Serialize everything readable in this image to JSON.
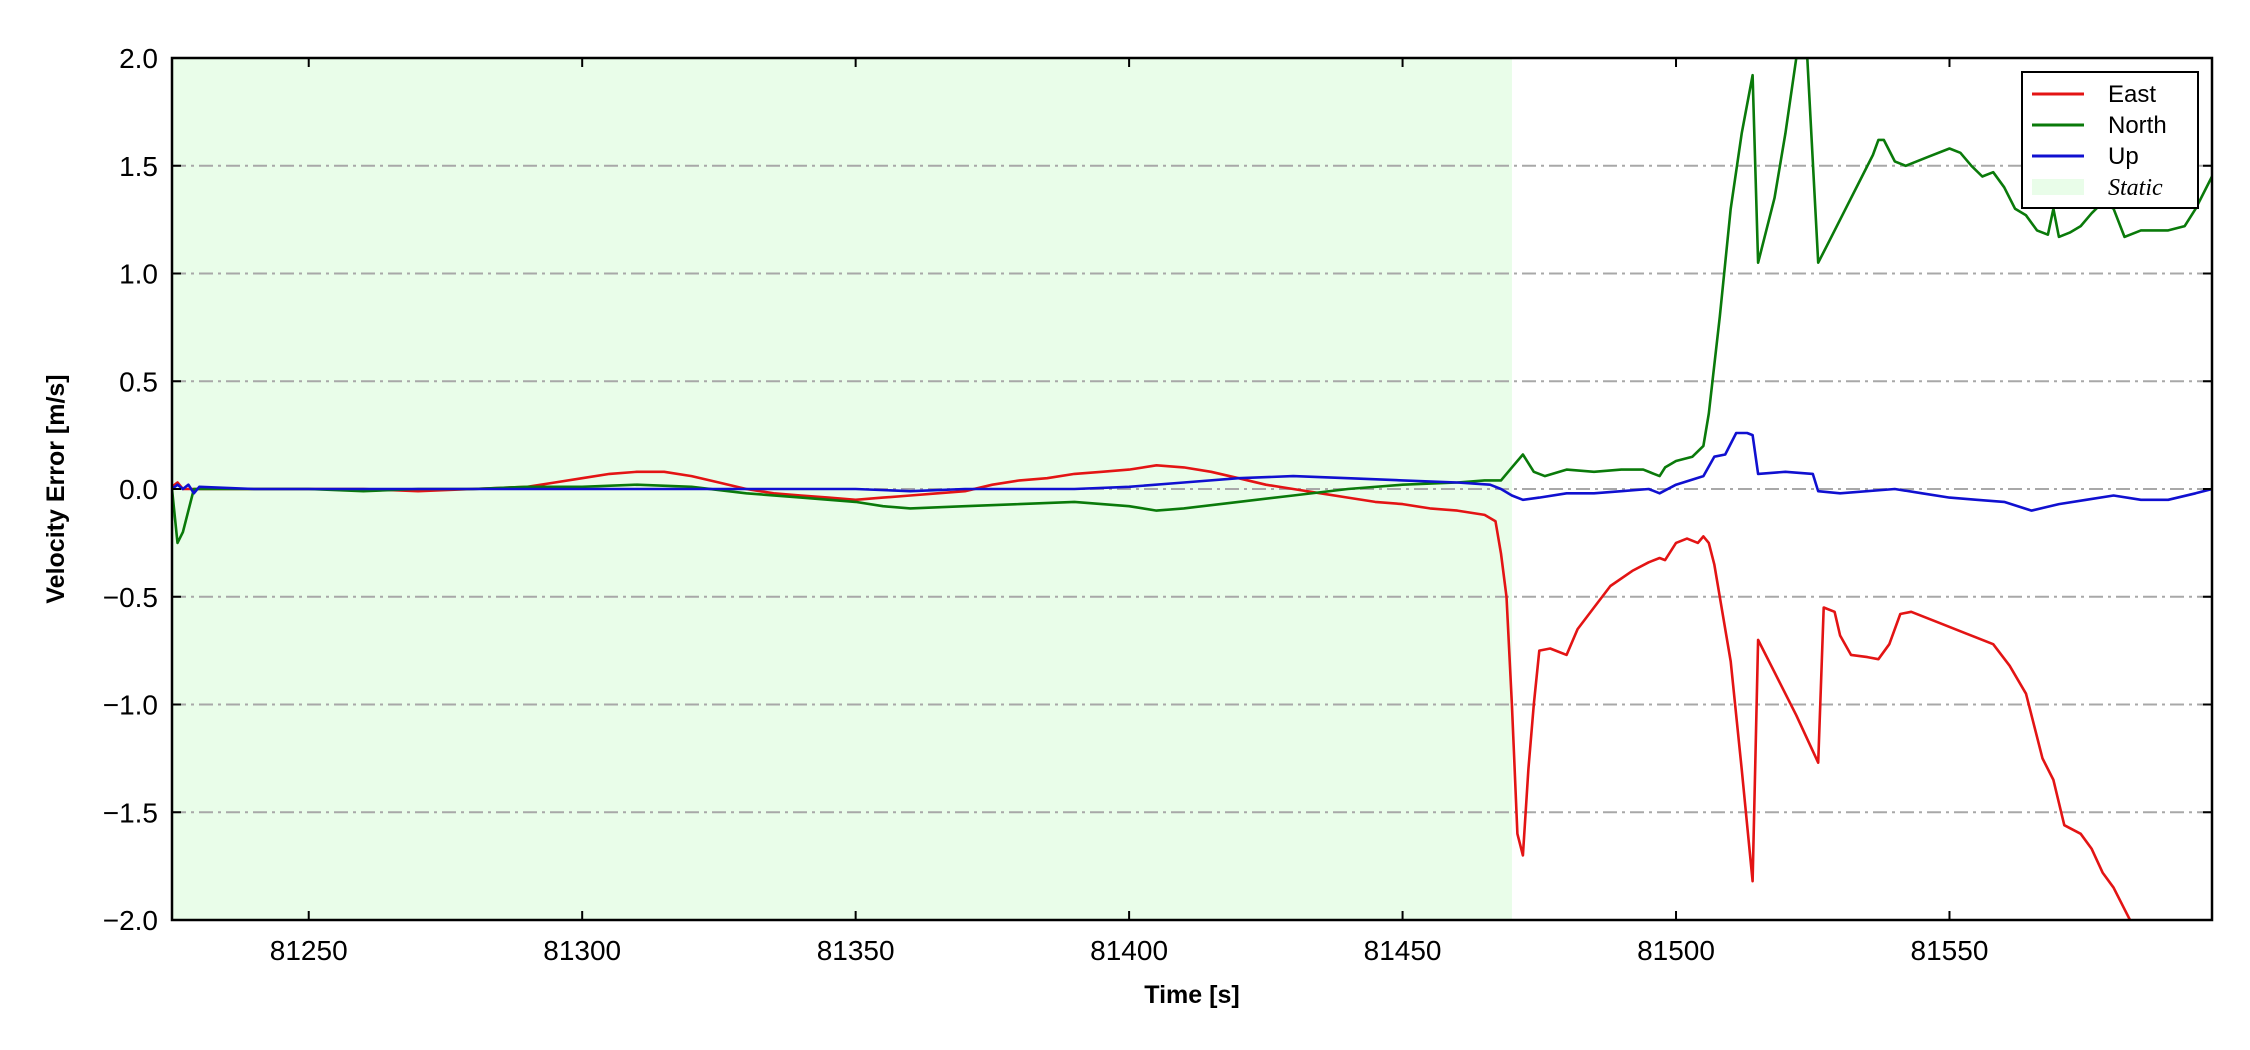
{
  "chart_data": {
    "type": "line",
    "title": "",
    "xlabel": "Time [s]",
    "ylabel": "Velocity Error [m/s]",
    "xlim": [
      81225,
      81598
    ],
    "ylim": [
      -2.0,
      2.0
    ],
    "x_ticks": [
      81250,
      81300,
      81350,
      81400,
      81450,
      81500,
      81550
    ],
    "x_tick_labels": [
      "81250",
      "81300",
      "81350",
      "81400",
      "81450",
      "81500",
      "81550"
    ],
    "y_ticks": [
      2.0,
      1.5,
      1.0,
      0.5,
      0.0,
      -0.5,
      -1.0,
      -1.5,
      -2.0
    ],
    "y_tick_labels": [
      "2.0",
      "1.5",
      "1.0",
      "0.5",
      "0.0",
      "−0.5",
      "−1.0",
      "−1.5",
      "−2.0"
    ],
    "grid": {
      "y": true,
      "x": false,
      "style": "dash-dot",
      "color": "#a8a8a8"
    },
    "legend": {
      "placement": "top-right"
    },
    "shaded_regions": [
      {
        "name": "Static",
        "x_start": 81225,
        "x_end": 81470,
        "color": "#e9fde9"
      }
    ],
    "series": [
      {
        "name": "East",
        "color": "#e31414",
        "points": [
          [
            81225,
            0.01
          ],
          [
            81226,
            0.03
          ],
          [
            81227,
            0.0
          ],
          [
            81230,
            0.0
          ],
          [
            81240,
            0.0
          ],
          [
            81250,
            0.0
          ],
          [
            81260,
            0.0
          ],
          [
            81270,
            -0.01
          ],
          [
            81280,
            0.0
          ],
          [
            81290,
            0.01
          ],
          [
            81295,
            0.03
          ],
          [
            81300,
            0.05
          ],
          [
            81305,
            0.07
          ],
          [
            81310,
            0.08
          ],
          [
            81315,
            0.08
          ],
          [
            81320,
            0.06
          ],
          [
            81325,
            0.03
          ],
          [
            81330,
            0.0
          ],
          [
            81335,
            -0.02
          ],
          [
            81340,
            -0.03
          ],
          [
            81345,
            -0.04
          ],
          [
            81350,
            -0.05
          ],
          [
            81355,
            -0.04
          ],
          [
            81360,
            -0.03
          ],
          [
            81365,
            -0.02
          ],
          [
            81370,
            -0.01
          ],
          [
            81375,
            0.02
          ],
          [
            81380,
            0.04
          ],
          [
            81385,
            0.05
          ],
          [
            81390,
            0.07
          ],
          [
            81395,
            0.08
          ],
          [
            81400,
            0.09
          ],
          [
            81405,
            0.11
          ],
          [
            81410,
            0.1
          ],
          [
            81415,
            0.08
          ],
          [
            81420,
            0.05
          ],
          [
            81425,
            0.02
          ],
          [
            81430,
            0.0
          ],
          [
            81435,
            -0.02
          ],
          [
            81440,
            -0.04
          ],
          [
            81445,
            -0.06
          ],
          [
            81450,
            -0.07
          ],
          [
            81455,
            -0.09
          ],
          [
            81460,
            -0.1
          ],
          [
            81465,
            -0.12
          ],
          [
            81467,
            -0.15
          ],
          [
            81468,
            -0.3
          ],
          [
            81469,
            -0.5
          ],
          [
            81470,
            -1.0
          ],
          [
            81471,
            -1.6
          ],
          [
            81472,
            -1.7
          ],
          [
            81473,
            -1.3
          ],
          [
            81474,
            -1.0
          ],
          [
            81475,
            -0.75
          ],
          [
            81477,
            -0.74
          ],
          [
            81480,
            -0.77
          ],
          [
            81482,
            -0.65
          ],
          [
            81485,
            -0.55
          ],
          [
            81488,
            -0.45
          ],
          [
            81492,
            -0.38
          ],
          [
            81495,
            -0.34
          ],
          [
            81497,
            -0.32
          ],
          [
            81498,
            -0.33
          ],
          [
            81500,
            -0.25
          ],
          [
            81502,
            -0.23
          ],
          [
            81504,
            -0.25
          ],
          [
            81505,
            -0.22
          ],
          [
            81506,
            -0.25
          ],
          [
            81507,
            -0.35
          ],
          [
            81510,
            -0.8
          ],
          [
            81512,
            -1.3
          ],
          [
            81514,
            -1.82
          ],
          [
            81515,
            -0.7
          ],
          [
            81518,
            -0.85
          ],
          [
            81522,
            -1.05
          ],
          [
            81526,
            -1.27
          ],
          [
            81527,
            -0.55
          ],
          [
            81529,
            -0.57
          ],
          [
            81530,
            -0.68
          ],
          [
            81532,
            -0.77
          ],
          [
            81535,
            -0.78
          ],
          [
            81537,
            -0.79
          ],
          [
            81539,
            -0.72
          ],
          [
            81541,
            -0.58
          ],
          [
            81543,
            -0.57
          ],
          [
            81548,
            -0.62
          ],
          [
            81553,
            -0.67
          ],
          [
            81558,
            -0.72
          ],
          [
            81561,
            -0.82
          ],
          [
            81564,
            -0.95
          ],
          [
            81566,
            -1.15
          ],
          [
            81567,
            -1.25
          ],
          [
            81569,
            -1.35
          ],
          [
            81571,
            -1.56
          ],
          [
            81574,
            -1.6
          ],
          [
            81576,
            -1.67
          ],
          [
            81578,
            -1.78
          ],
          [
            81580,
            -1.85
          ],
          [
            81582,
            -1.95
          ],
          [
            81583,
            -2.0
          ]
        ]
      },
      {
        "name": "North",
        "color": "#0a7a0a",
        "points": [
          [
            81225,
            0.0
          ],
          [
            81226,
            -0.25
          ],
          [
            81227,
            -0.2
          ],
          [
            81228,
            -0.1
          ],
          [
            81229,
            0.0
          ],
          [
            81230,
            0.0
          ],
          [
            81240,
            0.0
          ],
          [
            81250,
            0.0
          ],
          [
            81260,
            -0.01
          ],
          [
            81270,
            0.0
          ],
          [
            81280,
            0.0
          ],
          [
            81290,
            0.01
          ],
          [
            81300,
            0.01
          ],
          [
            81310,
            0.02
          ],
          [
            81320,
            0.01
          ],
          [
            81330,
            -0.02
          ],
          [
            81340,
            -0.04
          ],
          [
            81350,
            -0.06
          ],
          [
            81355,
            -0.08
          ],
          [
            81360,
            -0.09
          ],
          [
            81370,
            -0.08
          ],
          [
            81380,
            -0.07
          ],
          [
            81390,
            -0.06
          ],
          [
            81400,
            -0.08
          ],
          [
            81405,
            -0.1
          ],
          [
            81410,
            -0.09
          ],
          [
            81420,
            -0.06
          ],
          [
            81430,
            -0.03
          ],
          [
            81440,
            0.0
          ],
          [
            81450,
            0.02
          ],
          [
            81460,
            0.03
          ],
          [
            81465,
            0.04
          ],
          [
            81468,
            0.04
          ],
          [
            81470,
            0.1
          ],
          [
            81472,
            0.16
          ],
          [
            81474,
            0.08
          ],
          [
            81476,
            0.06
          ],
          [
            81480,
            0.09
          ],
          [
            81485,
            0.08
          ],
          [
            81490,
            0.09
          ],
          [
            81494,
            0.09
          ],
          [
            81496,
            0.07
          ],
          [
            81497,
            0.06
          ],
          [
            81498,
            0.1
          ],
          [
            81500,
            0.13
          ],
          [
            81503,
            0.15
          ],
          [
            81505,
            0.2
          ],
          [
            81506,
            0.35
          ],
          [
            81508,
            0.8
          ],
          [
            81510,
            1.3
          ],
          [
            81512,
            1.65
          ],
          [
            81514,
            1.92
          ],
          [
            81515,
            1.05
          ],
          [
            81518,
            1.35
          ],
          [
            81520,
            1.65
          ],
          [
            81522,
            2.0
          ],
          [
            81524,
            2.0
          ],
          [
            81526,
            1.05
          ],
          [
            81528,
            1.15
          ],
          [
            81531,
            1.3
          ],
          [
            81534,
            1.45
          ],
          [
            81536,
            1.55
          ],
          [
            81537,
            1.62
          ],
          [
            81538,
            1.62
          ],
          [
            81540,
            1.52
          ],
          [
            81542,
            1.5
          ],
          [
            81546,
            1.54
          ],
          [
            81550,
            1.58
          ],
          [
            81552,
            1.56
          ],
          [
            81554,
            1.5
          ],
          [
            81556,
            1.45
          ],
          [
            81558,
            1.47
          ],
          [
            81560,
            1.4
          ],
          [
            81562,
            1.3
          ],
          [
            81564,
            1.27
          ],
          [
            81566,
            1.2
          ],
          [
            81568,
            1.18
          ],
          [
            81569,
            1.3
          ],
          [
            81570,
            1.17
          ],
          [
            81572,
            1.19
          ],
          [
            81574,
            1.22
          ],
          [
            81576,
            1.28
          ],
          [
            81578,
            1.33
          ],
          [
            81580,
            1.3
          ],
          [
            81582,
            1.17
          ],
          [
            81585,
            1.2
          ],
          [
            81590,
            1.2
          ],
          [
            81593,
            1.22
          ],
          [
            81595,
            1.3
          ],
          [
            81598,
            1.45
          ]
        ]
      },
      {
        "name": "Up",
        "color": "#1010d0",
        "points": [
          [
            81225,
            0.0
          ],
          [
            81226,
            0.02
          ],
          [
            81227,
            0.0
          ],
          [
            81228,
            0.02
          ],
          [
            81229,
            -0.02
          ],
          [
            81230,
            0.01
          ],
          [
            81240,
            0.0
          ],
          [
            81250,
            0.0
          ],
          [
            81260,
            0.0
          ],
          [
            81270,
            0.0
          ],
          [
            81280,
            0.0
          ],
          [
            81290,
            0.0
          ],
          [
            81300,
            0.0
          ],
          [
            81310,
            0.0
          ],
          [
            81320,
            0.0
          ],
          [
            81330,
            0.0
          ],
          [
            81340,
            0.0
          ],
          [
            81350,
            0.0
          ],
          [
            81360,
            -0.01
          ],
          [
            81370,
            0.0
          ],
          [
            81380,
            0.0
          ],
          [
            81390,
            0.0
          ],
          [
            81400,
            0.01
          ],
          [
            81410,
            0.03
          ],
          [
            81420,
            0.05
          ],
          [
            81430,
            0.06
          ],
          [
            81440,
            0.05
          ],
          [
            81450,
            0.04
          ],
          [
            81460,
            0.03
          ],
          [
            81466,
            0.02
          ],
          [
            81468,
            0.0
          ],
          [
            81470,
            -0.03
          ],
          [
            81472,
            -0.05
          ],
          [
            81475,
            -0.04
          ],
          [
            81480,
            -0.02
          ],
          [
            81485,
            -0.02
          ],
          [
            81490,
            -0.01
          ],
          [
            81495,
            0.0
          ],
          [
            81497,
            -0.02
          ],
          [
            81500,
            0.02
          ],
          [
            81505,
            0.06
          ],
          [
            81507,
            0.15
          ],
          [
            81509,
            0.16
          ],
          [
            81511,
            0.26
          ],
          [
            81513,
            0.26
          ],
          [
            81514,
            0.25
          ],
          [
            81515,
            0.07
          ],
          [
            81520,
            0.08
          ],
          [
            81525,
            0.07
          ],
          [
            81526,
            -0.01
          ],
          [
            81530,
            -0.02
          ],
          [
            81540,
            0.0
          ],
          [
            81545,
            -0.02
          ],
          [
            81550,
            -0.04
          ],
          [
            81555,
            -0.05
          ],
          [
            81560,
            -0.06
          ],
          [
            81565,
            -0.1
          ],
          [
            81570,
            -0.07
          ],
          [
            81575,
            -0.05
          ],
          [
            81580,
            -0.03
          ],
          [
            81585,
            -0.05
          ],
          [
            81590,
            -0.05
          ],
          [
            81595,
            -0.02
          ],
          [
            81598,
            0.0
          ]
        ]
      }
    ]
  }
}
